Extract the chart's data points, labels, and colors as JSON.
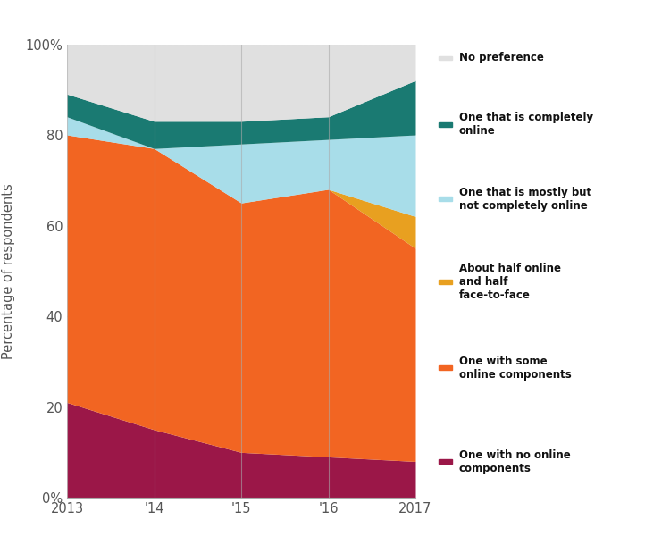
{
  "years": [
    2013,
    2014,
    2015,
    2016,
    2017
  ],
  "year_labels": [
    "2013",
    "'14",
    "'15",
    "'16",
    "2017"
  ],
  "series": [
    {
      "label": "One with no online\ncomponents",
      "color": "#9b1748",
      "values": [
        21,
        15,
        10,
        9,
        8
      ]
    },
    {
      "label": "One with some\nonline components",
      "color": "#f26522",
      "values": [
        59,
        62,
        55,
        59,
        47
      ]
    },
    {
      "label": "About half online\nand half\nface-to-face",
      "color": "#e8a020",
      "values": [
        0,
        0,
        0,
        0,
        7
      ]
    },
    {
      "label": "One that is mostly but\nnot completely online",
      "color": "#a8dde9",
      "values": [
        4,
        0,
        13,
        11,
        18
      ]
    },
    {
      "label": "One that is completely\nonline",
      "color": "#1a7a72",
      "values": [
        5,
        6,
        5,
        5,
        12
      ]
    },
    {
      "label": "No preference",
      "color": "#e0e0e0",
      "values": [
        11,
        17,
        17,
        16,
        8
      ]
    }
  ],
  "ylabel": "Percentage of respondents",
  "yticks": [
    0,
    20,
    40,
    60,
    80,
    100
  ],
  "ytick_labels": [
    "0%",
    "20",
    "40",
    "60",
    "80",
    "100%"
  ],
  "background_color": "#ffffff",
  "plot_background": "#f0f0f0",
  "grid_color": "#ffffff",
  "grid_style": "--",
  "vline_color": "#aaaaaa",
  "legend_labels": [
    "No preference",
    "One that is completely\nonline",
    "One that is mostly but\nnot completely online",
    "About half online\nand half\nface-to-face",
    "One with some\nonline components",
    "One with no online\ncomponents"
  ],
  "legend_colors": [
    "#e0e0e0",
    "#1a7a72",
    "#a8dde9",
    "#e8a020",
    "#f26522",
    "#9b1748"
  ]
}
